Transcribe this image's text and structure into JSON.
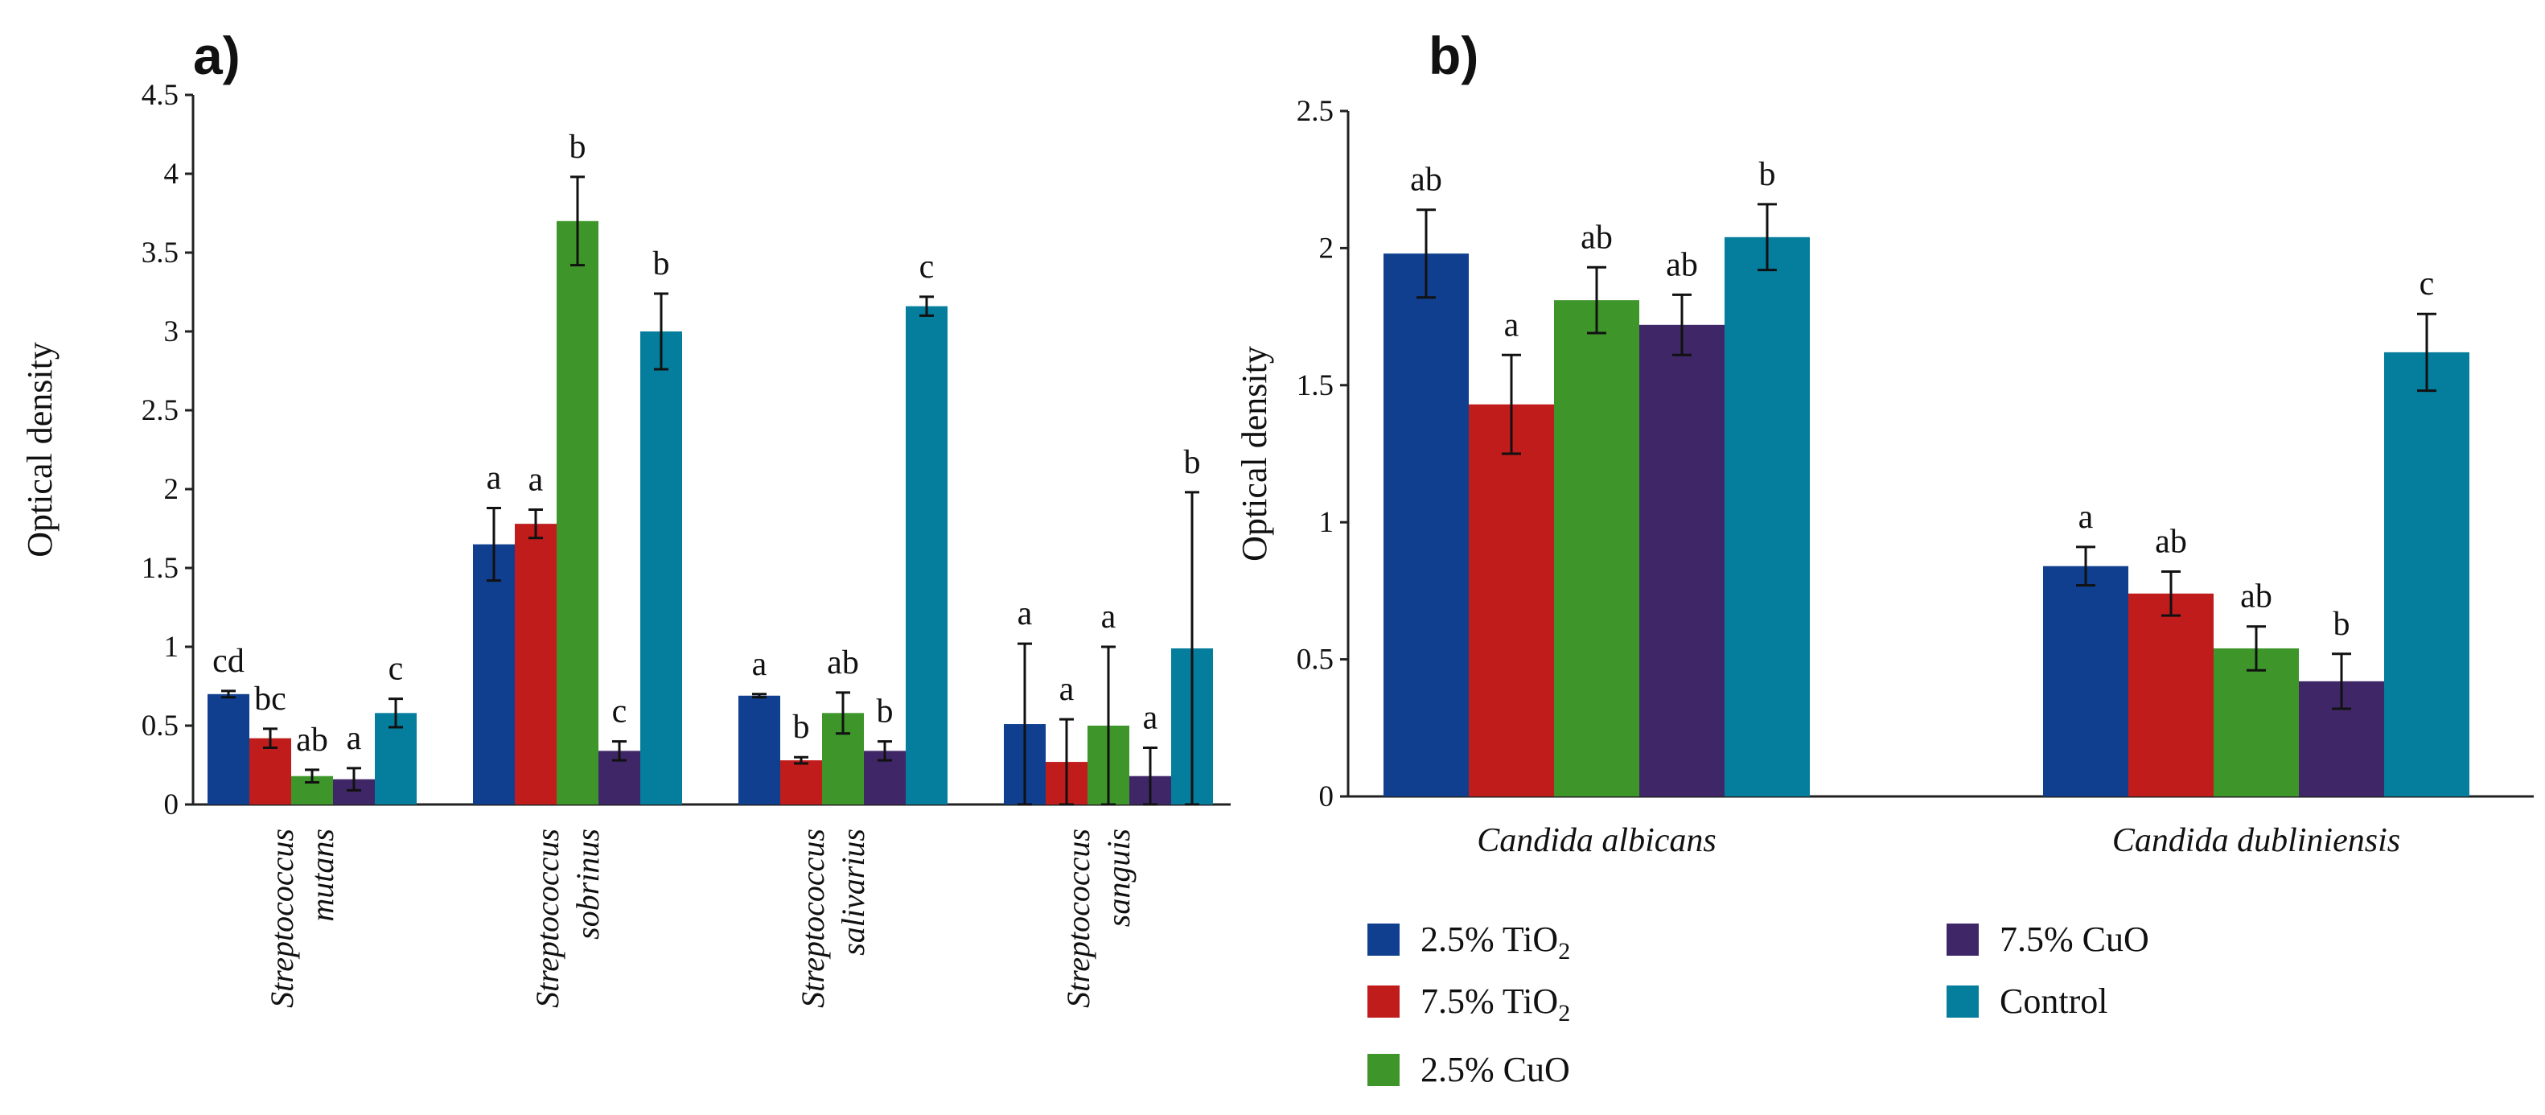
{
  "figure": {
    "legend": [
      {
        "label": "2.5% TiO",
        "sub": "2",
        "color": "#0f3f8e"
      },
      {
        "label": "7.5% TiO",
        "sub": "2",
        "color": "#c01c1c"
      },
      {
        "label": "2.5% CuO",
        "sub": "",
        "color": "#3e962b"
      },
      {
        "label": "7.5% CuO",
        "sub": "",
        "color": "#3f2767"
      },
      {
        "label": "Control",
        "sub": "",
        "color": "#057d9c"
      }
    ]
  },
  "chart_data": [
    {
      "type": "bar",
      "panel_label": "a)",
      "title": "",
      "xlabel": "",
      "ylabel": "Optical density",
      "ylim": [
        0,
        4.5
      ],
      "yticks": [
        "0",
        "0.5",
        "1",
        "1.5",
        "2",
        "2.5",
        "3",
        "3.5",
        "4",
        "4.5"
      ],
      "categories": [
        [
          "Streptococcus",
          "mutans"
        ],
        [
          "Streptococcus",
          "sobrinus"
        ],
        [
          "Streptococcus",
          "salivarius"
        ],
        [
          "Streptococcus",
          "sanguis"
        ]
      ],
      "series": [
        {
          "name": "2.5% TiO2",
          "values": [
            0.7,
            1.65,
            0.69,
            0.51
          ],
          "errors": [
            0.02,
            0.23,
            0.01,
            0.51
          ],
          "letters": [
            "cd",
            "a",
            "a",
            "a"
          ]
        },
        {
          "name": "7.5% TiO2",
          "values": [
            0.42,
            1.78,
            0.28,
            0.27
          ],
          "errors": [
            0.06,
            0.09,
            0.02,
            0.27
          ],
          "letters": [
            "bc",
            "a",
            "b",
            "a"
          ]
        },
        {
          "name": "2.5% CuO",
          "values": [
            0.18,
            3.7,
            0.58,
            0.5
          ],
          "errors": [
            0.04,
            0.28,
            0.13,
            0.5
          ],
          "letters": [
            "ab",
            "b",
            "ab",
            "a"
          ]
        },
        {
          "name": "7.5% CuO",
          "values": [
            0.16,
            0.34,
            0.34,
            0.18
          ],
          "errors": [
            0.07,
            0.06,
            0.06,
            0.18
          ],
          "letters": [
            "a",
            "c",
            "b",
            "a"
          ]
        },
        {
          "name": "Control",
          "values": [
            0.58,
            3.0,
            3.16,
            0.99
          ],
          "errors": [
            0.09,
            0.24,
            0.06,
            0.99
          ],
          "letters": [
            "c",
            "b",
            "c",
            "b"
          ]
        }
      ]
    },
    {
      "type": "bar",
      "panel_label": "b)",
      "title": "",
      "xlabel": "",
      "ylabel": "Optical density",
      "ylim": [
        0,
        2.5
      ],
      "yticks": [
        "0",
        "0.5",
        "1",
        "1.5",
        "2",
        "2.5"
      ],
      "categories": [
        "Candida albicans",
        "Candida dubliniensis"
      ],
      "series": [
        {
          "name": "2.5% TiO2",
          "values": [
            1.98,
            0.84
          ],
          "errors": [
            0.16,
            0.07
          ],
          "letters": [
            "ab",
            "a"
          ]
        },
        {
          "name": "7.5% TiO2",
          "values": [
            1.43,
            0.74
          ],
          "errors": [
            0.18,
            0.08
          ],
          "letters": [
            "a",
            "ab"
          ]
        },
        {
          "name": "2.5% CuO",
          "values": [
            1.81,
            0.54
          ],
          "errors": [
            0.12,
            0.08
          ],
          "letters": [
            "ab",
            "ab"
          ]
        },
        {
          "name": "7.5% CuO",
          "values": [
            1.72,
            0.42
          ],
          "errors": [
            0.11,
            0.1
          ],
          "letters": [
            "ab",
            "b"
          ]
        },
        {
          "name": "Control",
          "values": [
            2.04,
            1.62
          ],
          "errors": [
            0.12,
            0.14
          ],
          "letters": [
            "b",
            "c"
          ]
        }
      ]
    }
  ]
}
